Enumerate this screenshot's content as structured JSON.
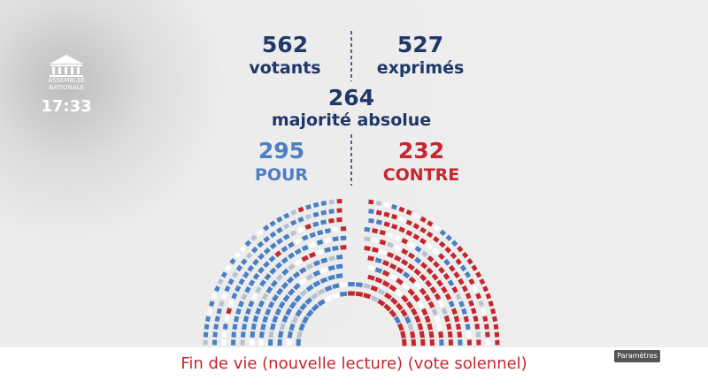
{
  "logo": {
    "line1": "ASSEMBLÉE",
    "line2": "NATIONALE"
  },
  "clock": "17:33",
  "results": {
    "votants": {
      "value": "562",
      "label": "votants"
    },
    "exprimes": {
      "value": "527",
      "label": "exprimés"
    },
    "majorite": {
      "value": "264",
      "label": "majorité absolue"
    },
    "pour": {
      "value": "295",
      "label": "POUR"
    },
    "contre": {
      "value": "232",
      "label": "CONTRE"
    }
  },
  "caption": "Fin de vie (nouvelle lecture) (vote solennel)",
  "settings_button": "Paramètres"
}
